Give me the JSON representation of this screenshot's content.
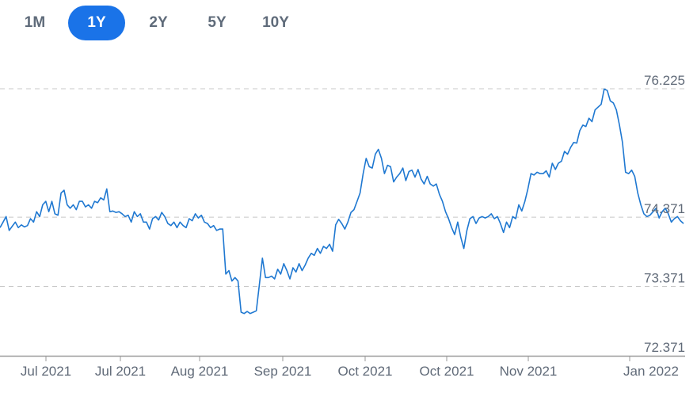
{
  "range_tabs": [
    {
      "label": "1M",
      "active": false
    },
    {
      "label": "1Y",
      "active": true
    },
    {
      "label": "2Y",
      "active": false
    },
    {
      "label": "5Y",
      "active": false
    },
    {
      "label": "10Y",
      "active": false
    }
  ],
  "colors": {
    "accent": "#1a73e8",
    "line": "#1f78d1",
    "grid": "#c8c8c8",
    "text": "#606a78"
  },
  "chart_data": {
    "type": "line",
    "ylim": [
      72.371,
      76.225
    ],
    "y_ticks": [
      {
        "value": 76.225,
        "label": "76.225"
      },
      {
        "value": 74.371,
        "label": "74.371"
      },
      {
        "value": 73.371,
        "label": "73.371"
      },
      {
        "value": 72.371,
        "label": "72.371"
      }
    ],
    "x_tick_labels": [
      "Jul 2021",
      "Jul 2021",
      "Aug 2021",
      "Sep 2021",
      "Oct 2021",
      "Oct 2021",
      "Nov 2021",
      "Jan 2022"
    ],
    "series": [
      {
        "values": [
          74.22,
          74.3,
          74.38,
          74.18,
          74.24,
          74.3,
          74.22,
          74.26,
          74.23,
          74.25,
          74.35,
          74.3,
          74.45,
          74.38,
          74.55,
          74.6,
          74.45,
          74.6,
          74.42,
          74.4,
          74.72,
          74.76,
          74.55,
          74.5,
          74.55,
          74.48,
          74.6,
          74.6,
          74.52,
          74.55,
          74.5,
          74.6,
          74.58,
          74.65,
          74.62,
          74.78,
          74.45,
          74.46,
          74.44,
          74.45,
          74.42,
          74.38,
          74.4,
          74.3,
          74.45,
          74.38,
          74.42,
          74.3,
          74.3,
          74.2,
          74.35,
          74.38,
          74.33,
          74.44,
          74.38,
          74.28,
          74.25,
          74.3,
          74.22,
          74.3,
          74.25,
          74.22,
          74.35,
          74.32,
          74.42,
          74.36,
          74.4,
          74.3,
          74.28,
          74.22,
          74.25,
          74.18,
          74.2,
          74.2,
          73.55,
          73.6,
          73.45,
          73.5,
          73.45,
          73.0,
          72.98,
          73.01,
          72.98,
          73.0,
          73.02,
          73.4,
          73.78,
          73.5,
          73.5,
          73.52,
          73.48,
          73.62,
          73.55,
          73.7,
          73.6,
          73.48,
          73.64,
          73.58,
          73.7,
          73.6,
          73.68,
          73.78,
          73.85,
          73.82,
          73.92,
          73.85,
          73.95,
          73.92,
          73.98,
          73.88,
          74.26,
          74.34,
          74.28,
          74.2,
          74.3,
          74.44,
          74.48,
          74.6,
          74.72,
          75.0,
          75.22,
          75.1,
          75.08,
          75.28,
          75.35,
          75.22,
          75.0,
          75.12,
          75.1,
          74.88,
          74.95,
          75.0,
          75.08,
          74.9,
          75.03,
          75.05,
          74.95,
          75.06,
          74.92,
          74.85,
          74.96,
          74.85,
          74.82,
          74.85,
          74.7,
          74.6,
          74.45,
          74.35,
          74.22,
          74.12,
          74.3,
          74.08,
          73.92,
          74.18,
          74.35,
          74.38,
          74.28,
          74.36,
          74.38,
          74.36,
          74.38,
          74.42,
          74.35,
          74.38,
          74.28,
          74.15,
          74.3,
          74.22,
          74.38,
          74.35,
          74.55,
          74.46,
          74.6,
          74.78,
          75.0,
          74.98,
          75.02,
          75.0,
          75.0,
          75.04,
          74.95,
          75.15,
          75.06,
          75.15,
          75.18,
          75.32,
          75.28,
          75.38,
          75.45,
          75.44,
          75.62,
          75.7,
          75.68,
          75.8,
          75.75,
          75.92,
          75.96,
          76.0,
          76.22,
          76.2,
          76.05,
          76.02,
          75.92,
          75.7,
          75.45,
          75.02,
          75.0,
          75.05,
          74.96,
          74.72,
          74.55,
          74.42,
          74.38,
          74.4,
          74.45,
          74.5,
          74.36,
          74.45,
          74.5,
          74.42,
          74.3,
          74.35,
          74.38,
          74.32,
          74.28
        ]
      }
    ]
  }
}
